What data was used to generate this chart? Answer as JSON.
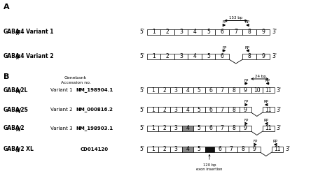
{
  "background": "#ffffff",
  "gray_color": "#888888",
  "dark_color": "#111111",
  "bp_153": "153 bp",
  "bp_24": "24 bp",
  "bp_120": "120 bp\nexon insertion",
  "acc1": "NM_198904.1",
  "acc2": "NM_000816.2",
  "acc3": "NM_198903.1",
  "acc4": "CD014120"
}
